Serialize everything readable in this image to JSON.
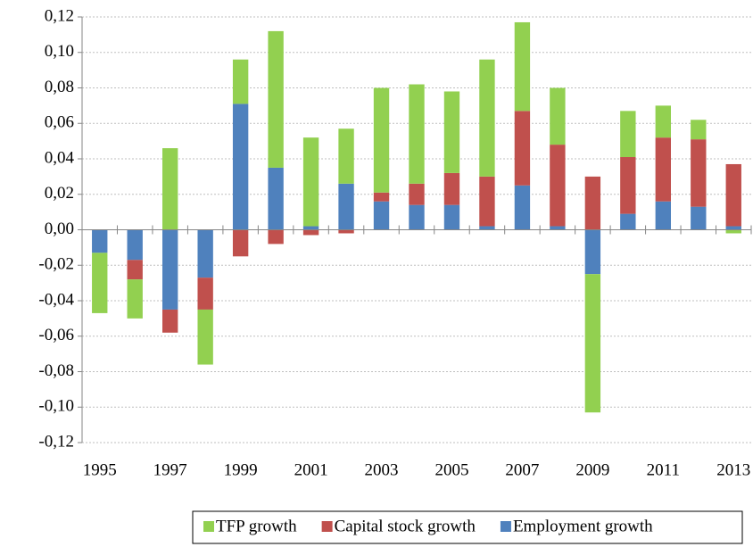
{
  "chart_data": {
    "type": "stacked_bar",
    "categories": [
      "1995",
      null,
      "1997",
      null,
      "1999",
      null,
      "2001",
      null,
      "2003",
      null,
      "2005",
      null,
      "2007",
      null,
      "2009",
      null,
      "2011",
      null,
      "2013"
    ],
    "series": [
      {
        "name": "TFP growth",
        "color": "#92d050",
        "values": [
          -0.034,
          -0.022,
          0.046,
          -0.031,
          0.025,
          0.077,
          0.05,
          0.031,
          0.059,
          0.056,
          0.046,
          0.066,
          0.05,
          0.032,
          -0.078,
          0.026,
          0.018,
          0.011,
          -0.002
        ]
      },
      {
        "name": "Capital stock growth",
        "color": "#c0504d",
        "values": [
          0,
          -0.011,
          -0.013,
          -0.018,
          -0.015,
          -0.008,
          -0.003,
          -0.002,
          0.005,
          0.012,
          0.018,
          0.028,
          0.042,
          0.046,
          0.03,
          0.032,
          0.036,
          0.038,
          0.035
        ]
      },
      {
        "name": "Employment growth",
        "color": "#4f81bd",
        "values": [
          -0.013,
          -0.017,
          -0.045,
          -0.027,
          0.071,
          0.035,
          0.002,
          0.026,
          0.016,
          0.014,
          0.014,
          0.002,
          0.025,
          0.002,
          -0.025,
          0.009,
          0.016,
          0.013,
          0.002
        ]
      }
    ],
    "ylim": [
      -0.12,
      0.12
    ],
    "yticks": [
      {
        "value": -0.12,
        "label": "-0,12"
      },
      {
        "value": -0.1,
        "label": "-0,10"
      },
      {
        "value": -0.08,
        "label": "-0,08"
      },
      {
        "value": -0.06,
        "label": "-0,06"
      },
      {
        "value": -0.04,
        "label": "-0,04"
      },
      {
        "value": -0.02,
        "label": "-0,02"
      },
      {
        "value": 0,
        "label": "0,00"
      },
      {
        "value": 0.02,
        "label": "0,02"
      },
      {
        "value": 0.04,
        "label": "0,04"
      },
      {
        "value": 0.06,
        "label": "0,06"
      },
      {
        "value": 0.08,
        "label": "0,08"
      },
      {
        "value": 0.1,
        "label": "0,10"
      },
      {
        "value": 0.12,
        "label": "0,12"
      }
    ],
    "grid": true,
    "legend": "bottom"
  }
}
